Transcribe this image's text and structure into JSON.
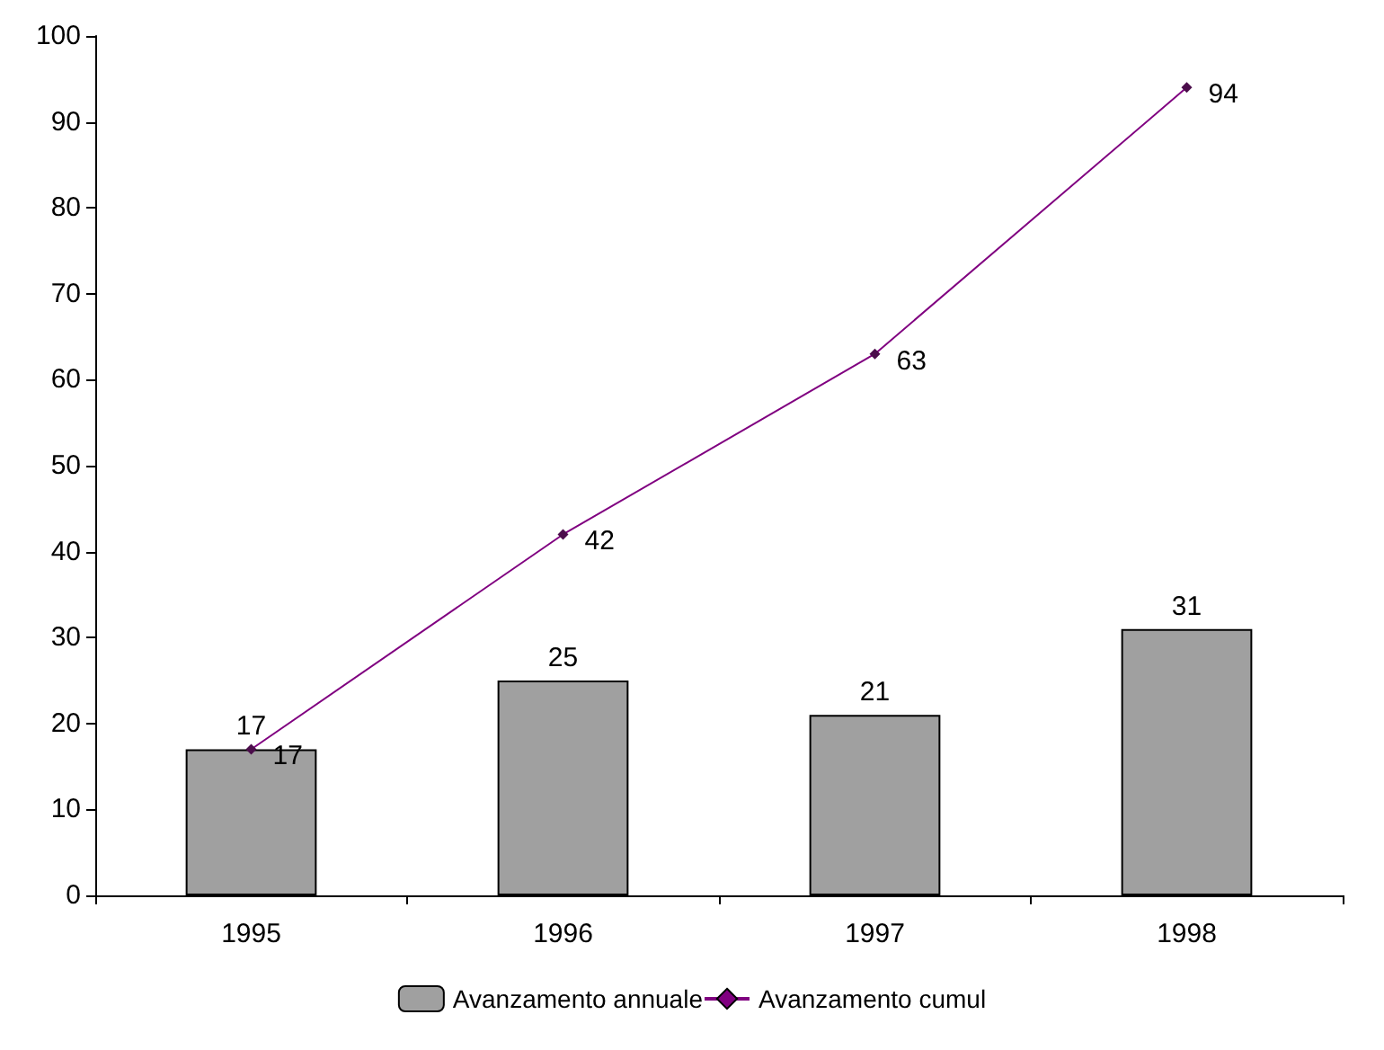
{
  "chart_data": {
    "type": "bar",
    "categories": [
      "1995",
      "1996",
      "1997",
      "1998"
    ],
    "series": [
      {
        "name": "Avanzamento annuale",
        "color": "#a0a0a0",
        "values": [
          17,
          25,
          21,
          31
        ]
      },
      {
        "name": "Avanzamento cumul",
        "type": "line",
        "color": "#800080",
        "values": [
          17,
          42,
          63,
          94
        ]
      }
    ],
    "ylim": [
      0,
      100
    ],
    "yticks": [
      0,
      10,
      20,
      30,
      40,
      50,
      60,
      70,
      80,
      90,
      100
    ],
    "grid": false,
    "legend": "bottom",
    "marker": "diamond",
    "line_style": "solid",
    "data_labels": true
  }
}
